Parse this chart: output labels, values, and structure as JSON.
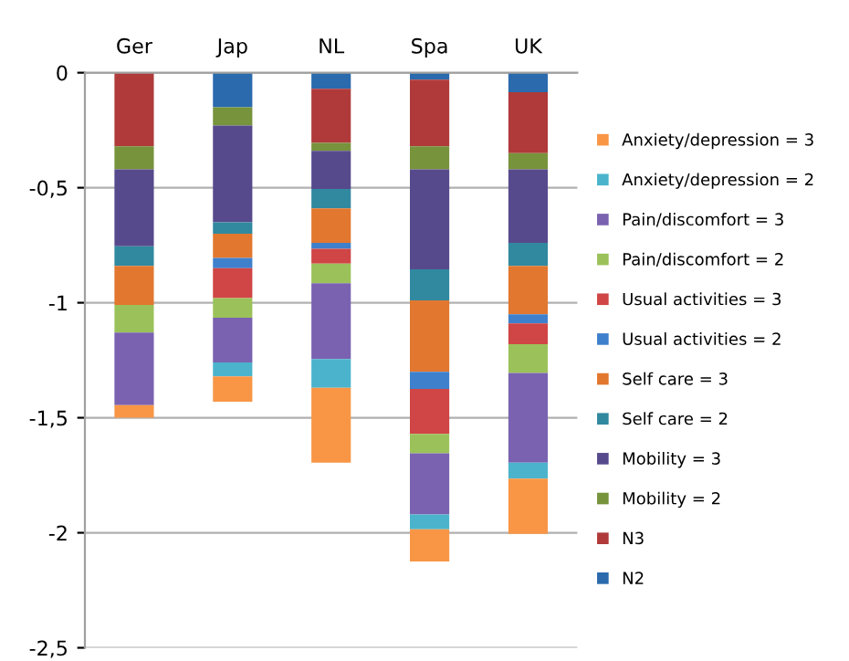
{
  "chart_data": {
    "type": "bar",
    "stacked": true,
    "categories": [
      "Ger",
      "Jap",
      "NL",
      "Spa",
      "UK"
    ],
    "series": [
      {
        "name": "N2",
        "color": "#2a6aad",
        "values": [
          0,
          -0.15,
          -0.07,
          -0.03,
          -0.085
        ]
      },
      {
        "name": "N3",
        "color": "#b03a3a",
        "values": [
          -0.32,
          0,
          -0.235,
          -0.29,
          -0.265
        ]
      },
      {
        "name": "Mobility = 2",
        "color": "#77933c",
        "values": [
          -0.1,
          -0.08,
          -0.035,
          -0.1,
          -0.07
        ]
      },
      {
        "name": "Mobility = 3",
        "color": "#574a8c",
        "values": [
          -0.335,
          -0.42,
          -0.165,
          -0.435,
          -0.32
        ]
      },
      {
        "name": "Self care = 2",
        "color": "#31899f",
        "values": [
          -0.085,
          -0.05,
          -0.085,
          -0.135,
          -0.1
        ]
      },
      {
        "name": "Self care = 3",
        "color": "#e2772f",
        "values": [
          -0.17,
          -0.105,
          -0.15,
          -0.31,
          -0.21
        ]
      },
      {
        "name": "Usual activities = 2",
        "color": "#3f80cc",
        "values": [
          0,
          -0.045,
          -0.025,
          -0.075,
          -0.04
        ]
      },
      {
        "name": "Usual activities = 3",
        "color": "#d04545",
        "values": [
          0,
          -0.13,
          -0.065,
          -0.195,
          -0.09
        ]
      },
      {
        "name": "Pain/discomfort = 2",
        "color": "#9bc25a",
        "values": [
          -0.12,
          -0.085,
          -0.085,
          -0.085,
          -0.125
        ]
      },
      {
        "name": "Pain/discomfort = 3",
        "color": "#7a62b0",
        "values": [
          -0.315,
          -0.195,
          -0.33,
          -0.265,
          -0.39
        ]
      },
      {
        "name": "Anxiety/depression = 2",
        "color": "#4bb4cc",
        "values": [
          0,
          -0.06,
          -0.125,
          -0.065,
          -0.07
        ]
      },
      {
        "name": "Anxiety/depression = 3",
        "color": "#f89646",
        "values": [
          -0.055,
          -0.11,
          -0.325,
          -0.14,
          -0.24
        ]
      }
    ],
    "ylim": [
      -2.5,
      0
    ],
    "yticks": [
      0,
      {
        "value": -0.5,
        "label": "-0,5"
      },
      {
        "value": -1,
        "label": "-1"
      },
      {
        "value": -1.5,
        "label": "-1,5"
      },
      {
        "value": -2,
        "label": "-2"
      },
      {
        "value": -2.5,
        "label": "-2,5"
      }
    ],
    "grid": "y",
    "legend": "right"
  }
}
